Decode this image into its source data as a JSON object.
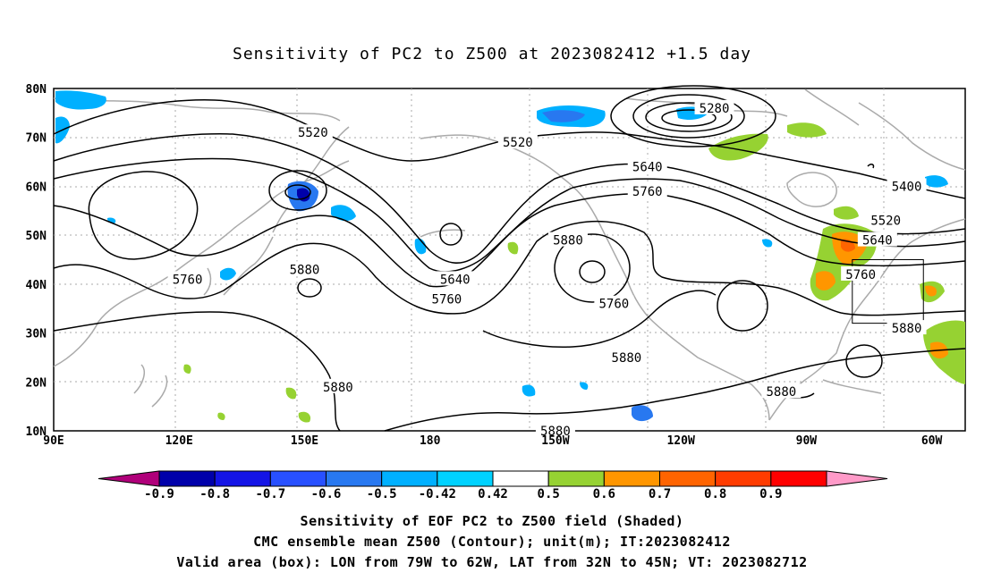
{
  "title": "Sensitivity of PC2 to Z500 at 2023082412 +1.5 day",
  "map": {
    "lat_labels": [
      "80N",
      "70N",
      "60N",
      "50N",
      "40N",
      "30N",
      "20N",
      "10N"
    ],
    "lon_labels": [
      "90E",
      "120E",
      "150E",
      "180",
      "150W",
      "120W",
      "90W",
      "60W"
    ],
    "contour_labels": [
      {
        "text": "5280",
        "lon": -112,
        "lat": 76
      },
      {
        "text": "5520",
        "lon": 152,
        "lat": 71
      },
      {
        "text": "5520",
        "lon": -159,
        "lat": 69
      },
      {
        "text": "5640",
        "lon": -128,
        "lat": 64
      },
      {
        "text": "5760",
        "lon": -128,
        "lat": 59
      },
      {
        "text": "5400",
        "lon": -66,
        "lat": 60
      },
      {
        "text": "5520",
        "lon": -71,
        "lat": 53
      },
      {
        "text": "5640",
        "lon": -73,
        "lat": 49
      },
      {
        "text": "5760",
        "lon": -77,
        "lat": 42
      },
      {
        "text": "5880",
        "lon": -66,
        "lat": 31
      },
      {
        "text": "5880",
        "lon": -147,
        "lat": 49
      },
      {
        "text": "5640",
        "lon": -174,
        "lat": 41
      },
      {
        "text": "5760",
        "lon": -176,
        "lat": 37
      },
      {
        "text": "5880",
        "lon": 150,
        "lat": 43
      },
      {
        "text": "5760",
        "lon": 122,
        "lat": 41
      },
      {
        "text": "5760",
        "lon": -136,
        "lat": 36
      },
      {
        "text": "5880",
        "lon": -133,
        "lat": 25
      },
      {
        "text": "5880",
        "lon": 158,
        "lat": 19
      },
      {
        "text": "5880",
        "lon": -150,
        "lat": 10
      },
      {
        "text": "5880",
        "lon": -96,
        "lat": 18
      }
    ],
    "valid_box": {
      "lon_min": -79,
      "lon_max": -62,
      "lat_min": 32,
      "lat_max": 45
    }
  },
  "colorbar": {
    "labels": [
      "-0.9",
      "-0.8",
      "-0.7",
      "-0.6",
      "-0.5",
      "-0.42",
      "0.42",
      "0.5",
      "0.6",
      "0.7",
      "0.8",
      "0.9"
    ],
    "colors": [
      "#b0007a",
      "#0000aa",
      "#1414e6",
      "#2850ff",
      "#2878f0",
      "#00b0ff",
      "#00d2ff",
      "#ffffff",
      "#96d232",
      "#ff9600",
      "#ff6400",
      "#ff3c00",
      "#ff0000",
      "#ff9ac8"
    ]
  },
  "footer": {
    "line1": "Sensitivity of EOF PC2 to Z500 field (Shaded)",
    "line2": "CMC ensemble mean Z500 (Contour); unit(m); IT:2023082412",
    "line3": "Valid area (box): LON from 79W to 62W, LAT from 32N to 45N; VT: 2023082712"
  }
}
